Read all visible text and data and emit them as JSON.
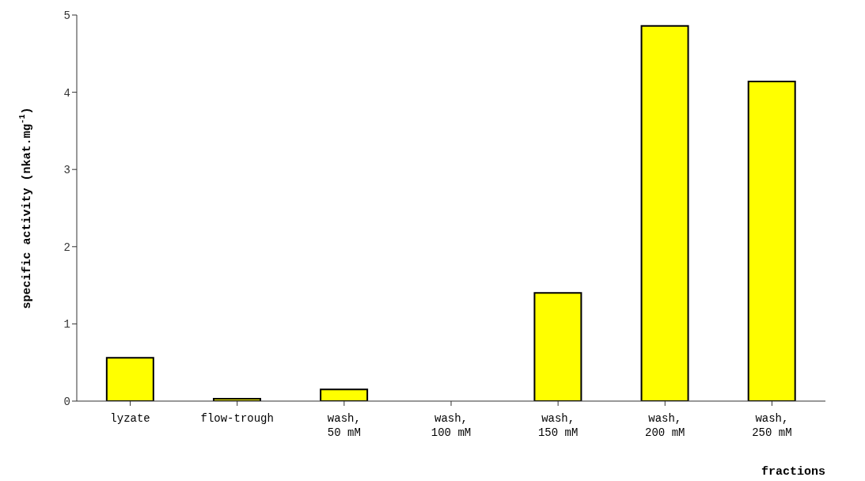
{
  "chart_data": {
    "type": "bar",
    "xlabel": "fractions",
    "ylabel": "specific activity (nkat.mg$^{-1}$)",
    "categories": [
      "lyzate",
      "flow-trough",
      "wash,\n50 mM",
      "wash,\n100 mM",
      "wash,\n150 mM",
      "wash,\n200 mM",
      "wash,\n250 mM"
    ],
    "values": [
      0.56,
      0.03,
      0.15,
      0,
      1.4,
      4.86,
      4.14
    ],
    "color": "#ffff00",
    "ylim": [
      0,
      5
    ],
    "yticks": [
      0,
      1,
      2,
      3,
      4,
      5
    ],
    "grid": false,
    "legend": false
  }
}
